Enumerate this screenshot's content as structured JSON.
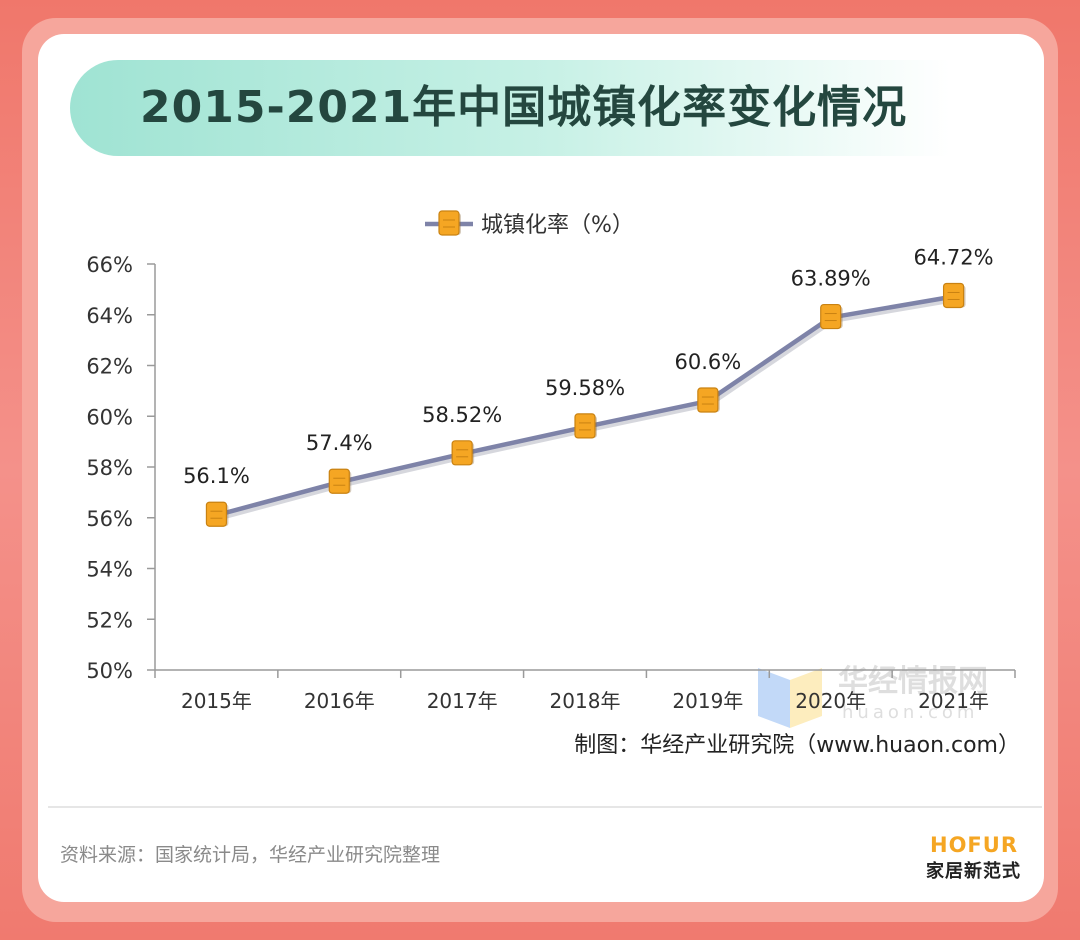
{
  "page": {
    "title": "2015-2021年中国城镇化率变化情况",
    "credit": "制图：华经产业研究院（www.huaon.com）",
    "source": "资料来源：国家统计局，华经产业研究院整理",
    "logo_en": "HOFUR",
    "logo_cn": "家居新范式",
    "watermark": "华经情报网",
    "watermark_sub": "huaon.com"
  },
  "colors": {
    "line": "#7e83a8",
    "marker": "#f5a623",
    "title_text": "#24473f",
    "logo_accent": "#f5a623"
  },
  "chart_data": {
    "type": "line",
    "title": "2015-2021年中国城镇化率变化情况",
    "xlabel": "",
    "ylabel": "",
    "categories": [
      "2015年",
      "2016年",
      "2017年",
      "2018年",
      "2019年",
      "2020年",
      "2021年"
    ],
    "series": [
      {
        "name": "城镇化率（%）",
        "values": [
          56.1,
          57.4,
          58.52,
          59.58,
          60.6,
          63.89,
          64.72
        ],
        "labels": [
          "56.1%",
          "57.4%",
          "58.52%",
          "59.58%",
          "60.6%",
          "63.89%",
          "64.72%"
        ]
      }
    ],
    "ylim": [
      50,
      66
    ],
    "yticks": [
      50,
      52,
      54,
      56,
      58,
      60,
      62,
      64,
      66
    ],
    "ytick_labels": [
      "50%",
      "52%",
      "54%",
      "56%",
      "58%",
      "60%",
      "62%",
      "64%",
      "66%"
    ],
    "legend": "top-center",
    "grid": false
  }
}
